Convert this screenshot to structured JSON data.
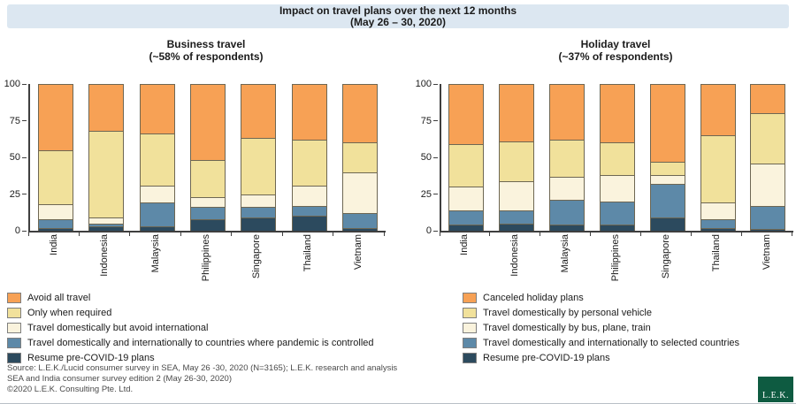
{
  "header": {
    "title_line1": "Impact on travel plans over the next 12 months",
    "title_line2": "(May 26 – 30, 2020)",
    "bg_color": "#dce7f1"
  },
  "chart_data": [
    {
      "type": "bar",
      "stacked": true,
      "percent": true,
      "title": "Business travel",
      "subtitle": "(~58% of respondents)",
      "categories": [
        "India",
        "Indonesia",
        "Malaysia",
        "Philippines",
        "Singapore",
        "Thailand",
        "Vietnam"
      ],
      "y_ticks": [
        0,
        25,
        50,
        75,
        100
      ],
      "ylim": [
        0,
        100
      ],
      "legend_position": "bottom-left",
      "series": [
        {
          "name": "Avoid all travel",
          "color": "#f7a155",
          "values": [
            45,
            32,
            34,
            52,
            37,
            38,
            40
          ]
        },
        {
          "name": "Only when required",
          "color": "#f1e19b",
          "values": [
            37,
            59,
            35,
            25,
            38,
            31,
            20
          ]
        },
        {
          "name": "Travel domestically but avoid international",
          "color": "#faf3dd",
          "values": [
            10,
            4,
            12,
            7,
            9,
            14,
            28
          ]
        },
        {
          "name": "Travel domestically and internationally to countries where pandemic is controlled",
          "color": "#5d89a8",
          "values": [
            6,
            2,
            16,
            8,
            7,
            7,
            10
          ]
        },
        {
          "name": "Resume pre-COVID-19 plans",
          "color": "#2c4a5e",
          "values": [
            2,
            3,
            3,
            8,
            9,
            10,
            2
          ]
        }
      ]
    },
    {
      "type": "bar",
      "stacked": true,
      "percent": true,
      "title": "Holiday travel",
      "subtitle": "(~37% of respondents)",
      "categories": [
        "India",
        "Indonesia",
        "Malaysia",
        "Philippines",
        "Singapore",
        "Thailand",
        "Vietnam"
      ],
      "y_ticks": [
        0,
        25,
        50,
        75,
        100
      ],
      "ylim": [
        0,
        100
      ],
      "legend_position": "bottom-left",
      "series": [
        {
          "name": "Canceled holiday plans",
          "color": "#f7a155",
          "values": [
            41,
            39,
            38,
            40,
            53,
            35,
            20
          ]
        },
        {
          "name": "Travel domestically by personal vehicle",
          "color": "#f1e19b",
          "values": [
            29,
            27,
            25,
            22,
            9,
            46,
            34
          ]
        },
        {
          "name": "Travel domestically by bus, plane, train",
          "color": "#faf3dd",
          "values": [
            16,
            20,
            16,
            18,
            6,
            11,
            29
          ]
        },
        {
          "name": "Travel domestically and internationally to selected countries",
          "color": "#5d89a8",
          "values": [
            10,
            9,
            17,
            16,
            23,
            6,
            16
          ]
        },
        {
          "name": "Resume pre-COVID-19 plans",
          "color": "#2c4a5e",
          "values": [
            4,
            5,
            4,
            4,
            9,
            2,
            1
          ]
        }
      ]
    }
  ],
  "footer": {
    "line1": "Source:  L.E.K./Lucid consumer survey in SEA, May 26 -30, 2020 (N=3165); L.E.K. research and analysis",
    "line2": "SEA and India consumer survey edition 2 (May 26-30, 2020)",
    "line3": "©2020 L.E.K. Consulting Pte. Ltd."
  },
  "logo": {
    "text": "L.E.K.",
    "bg_color": "#0e5b41"
  }
}
